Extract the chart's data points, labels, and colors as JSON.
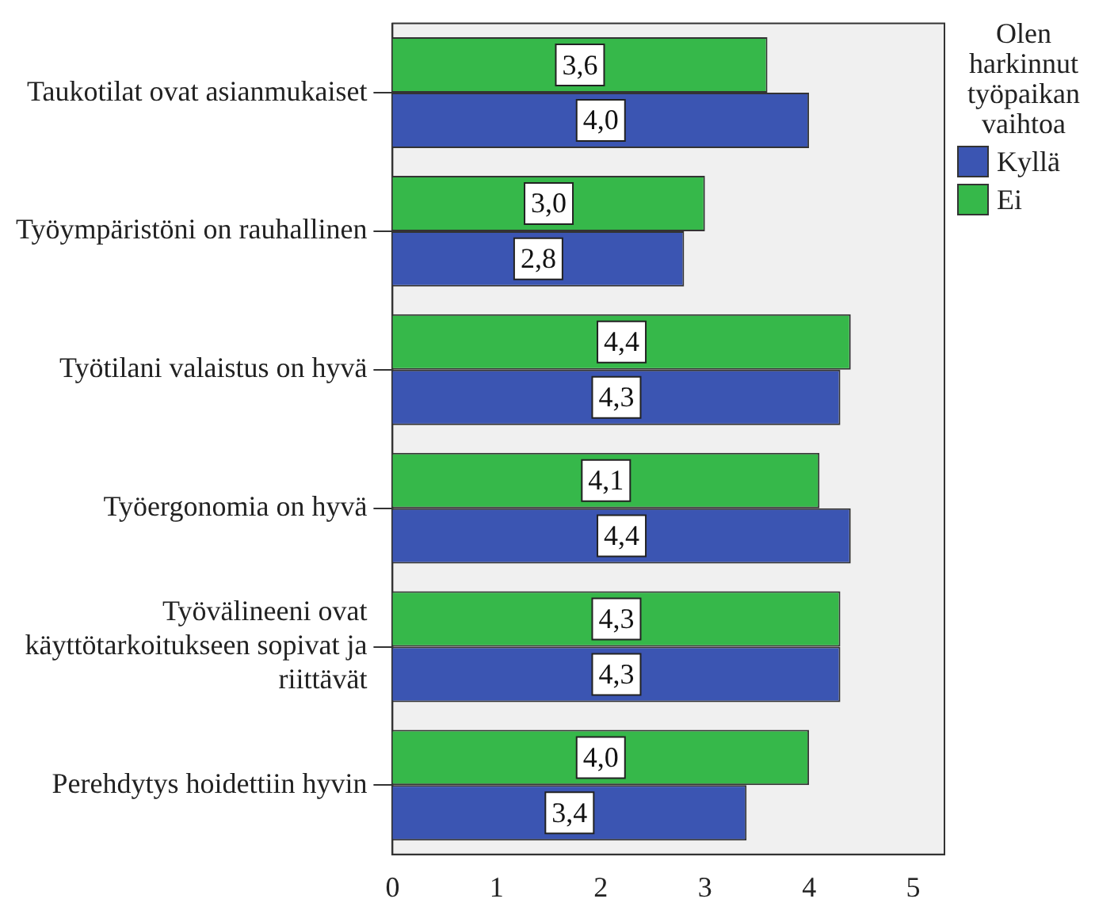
{
  "chart_data": {
    "type": "bar",
    "orientation": "horizontal",
    "legend_title": "Olen harkinnut työpaikan vaihtoa",
    "legend": "right",
    "categories": [
      "Taukotilat ovat asianmukaiset",
      "Työympäristöni on rauhallinen",
      "Työtilani valaistus on hyvä",
      "Työergonomia on hyvä",
      "Työvälineeni ovat käyttötarkoitukseen sopivat ja riittävät",
      "Perehdytys hoidettiin hyvin"
    ],
    "series": [
      {
        "name": "Kyllä",
        "color": "#3b55b2",
        "values": [
          4.0,
          2.8,
          4.3,
          4.4,
          4.3,
          3.4
        ],
        "value_labels": [
          "4,0",
          "2,8",
          "4,3",
          "4,4",
          "4,3",
          "3,4"
        ]
      },
      {
        "name": "Ei",
        "color": "#36b84a",
        "values": [
          3.6,
          3.0,
          4.4,
          4.1,
          4.3,
          4.0
        ],
        "value_labels": [
          "3,6",
          "3,0",
          "4,4",
          "4,1",
          "4,3",
          "4,0"
        ]
      }
    ],
    "xlim": [
      0,
      5.3
    ],
    "xticks": [
      0,
      1,
      2,
      3,
      4,
      5
    ],
    "grid": false
  }
}
